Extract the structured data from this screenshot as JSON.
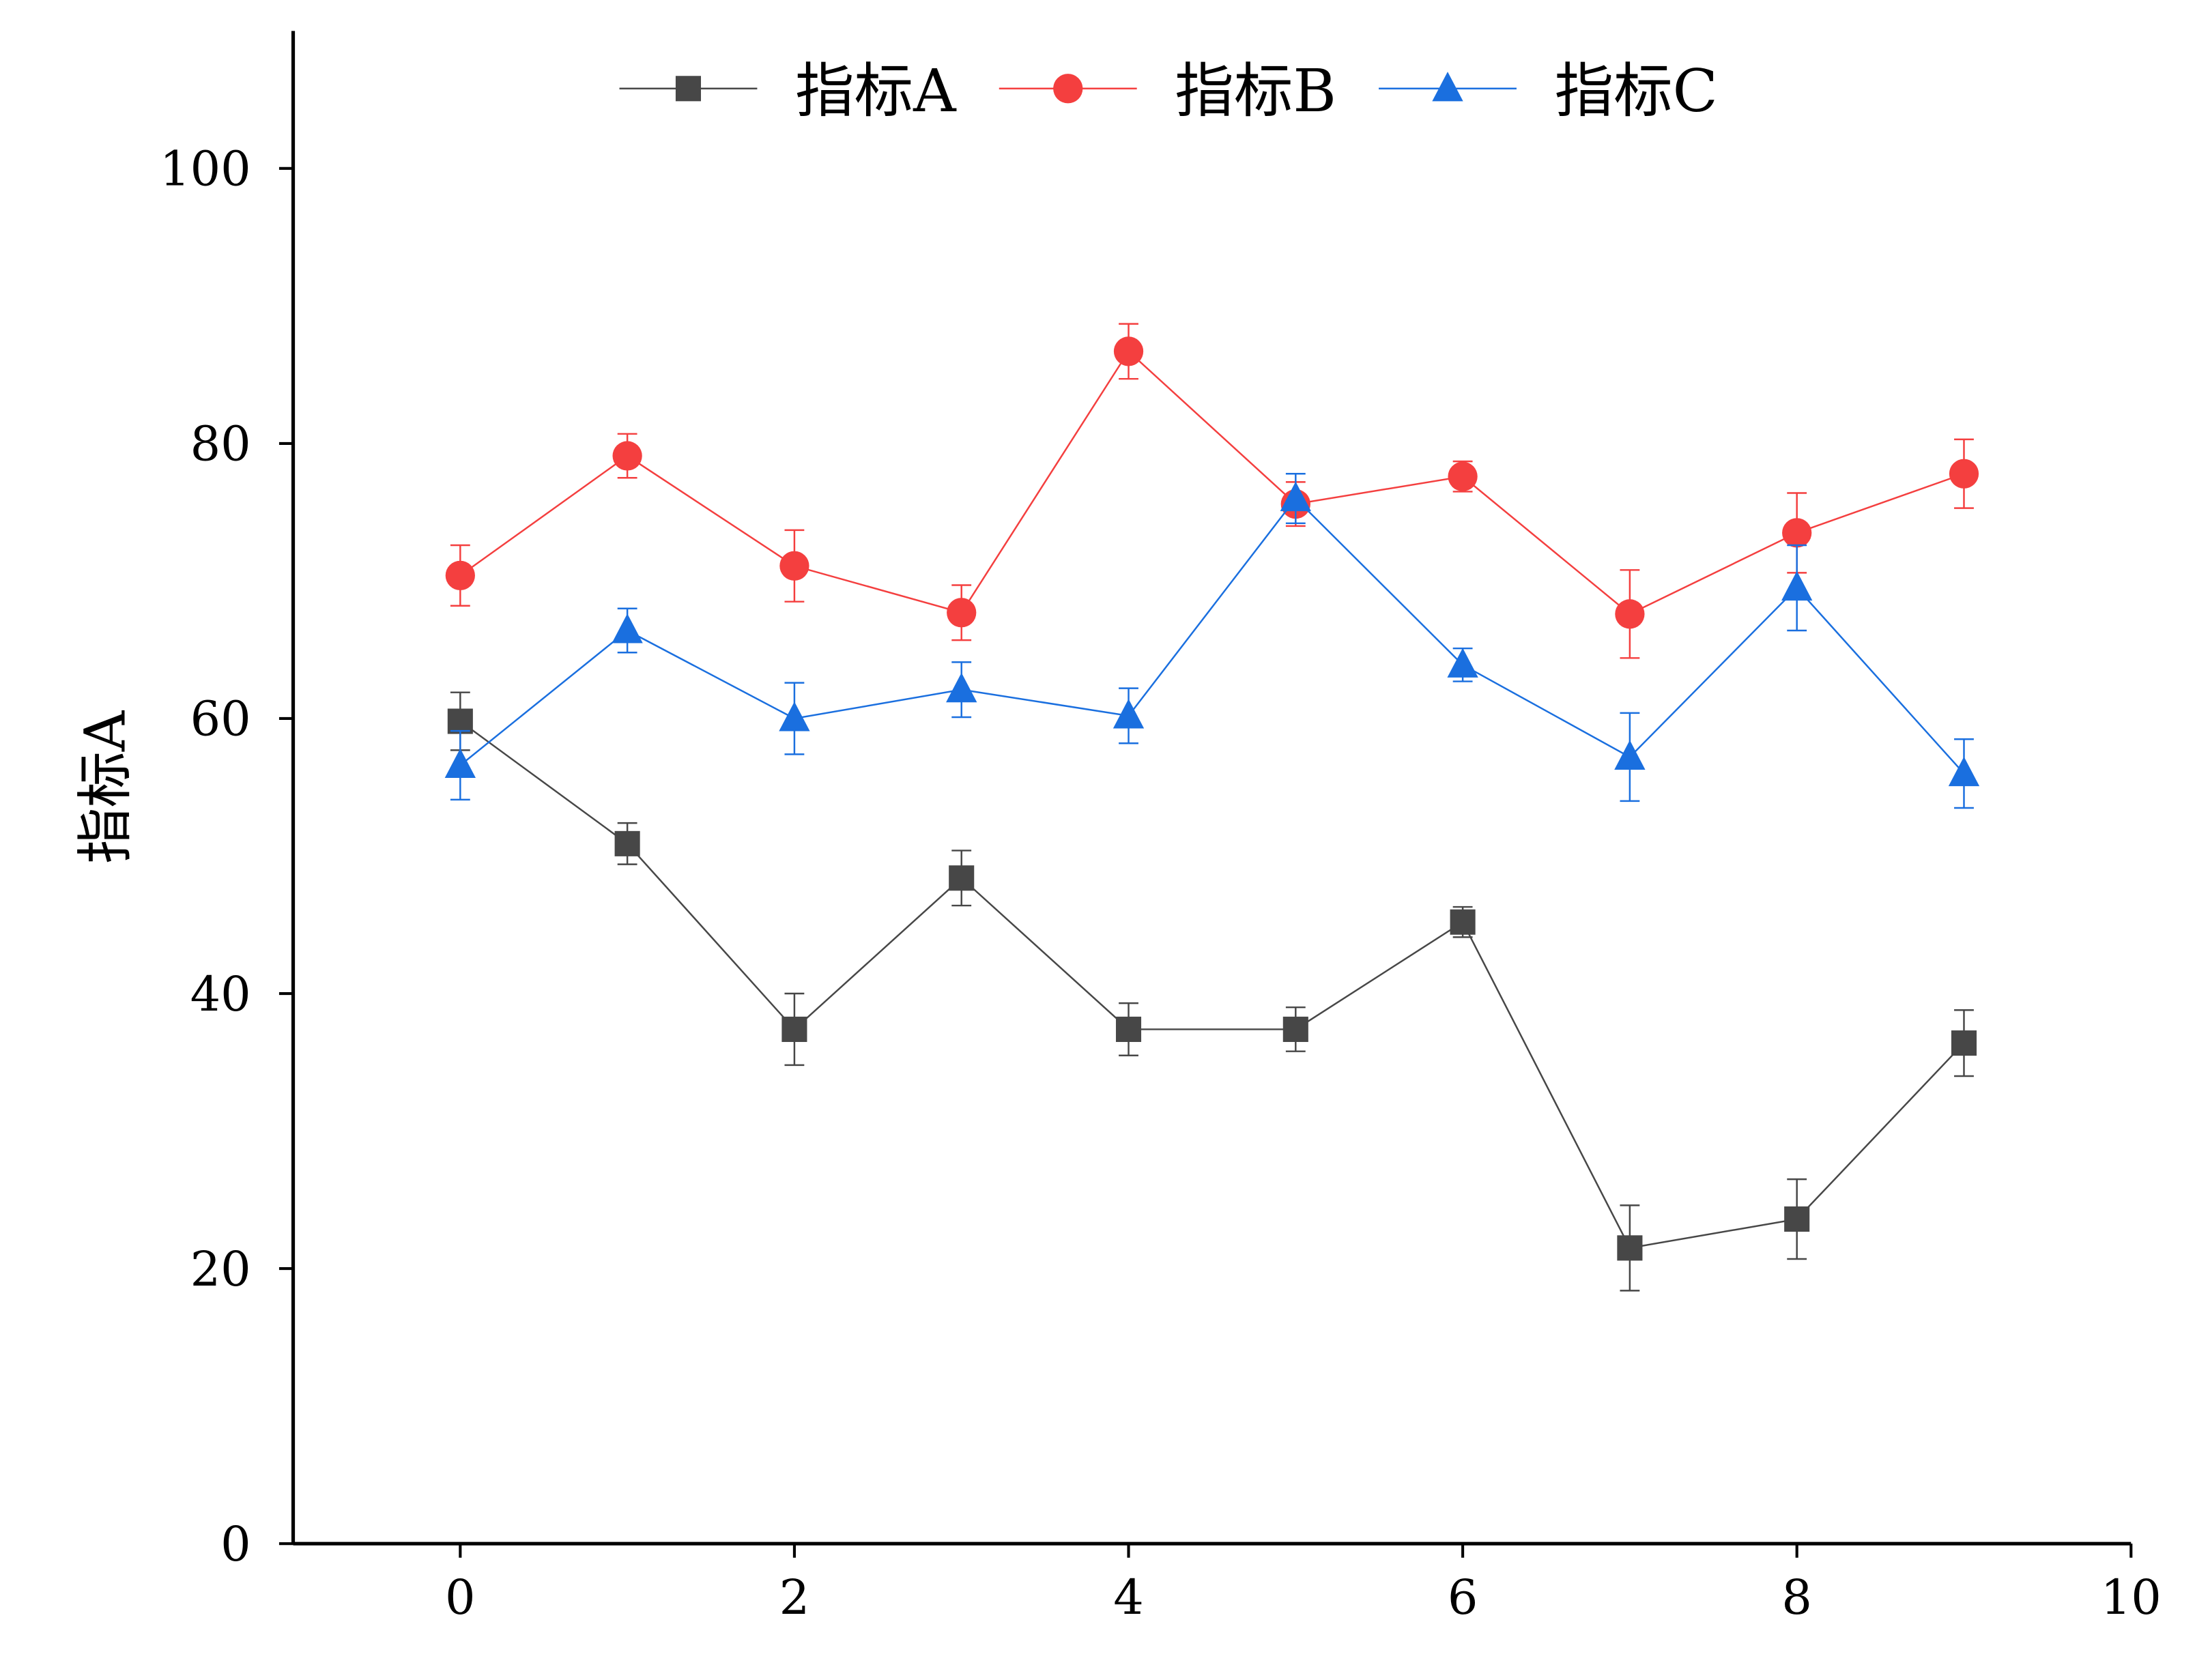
{
  "chart_data": {
    "type": "line",
    "title": "",
    "xlabel": "",
    "ylabel": "指标A",
    "xlim": [
      -1,
      10
    ],
    "ylim": [
      0,
      110
    ],
    "xticks": [
      0,
      2,
      4,
      6,
      8,
      10
    ],
    "yticks": [
      0,
      20,
      40,
      60,
      80,
      100
    ],
    "grid": false,
    "legend_position": "top-center",
    "x": [
      0,
      1,
      2,
      3,
      4,
      5,
      6,
      7,
      8,
      9
    ],
    "series": [
      {
        "name": "指标A",
        "color": "#474747",
        "marker": "square",
        "values": [
          59.8,
          50.9,
          37.4,
          48.4,
          37.4,
          37.4,
          45.2,
          21.5,
          23.6,
          36.4
        ],
        "errors": [
          2.1,
          1.5,
          2.6,
          2.0,
          1.9,
          1.6,
          1.1,
          3.1,
          2.9,
          2.4
        ]
      },
      {
        "name": "指标B",
        "color": "#f43f3f",
        "marker": "circle",
        "values": [
          70.4,
          79.1,
          71.1,
          67.7,
          86.7,
          75.6,
          77.6,
          67.6,
          73.5,
          77.8
        ],
        "errors": [
          2.2,
          1.6,
          2.6,
          2.0,
          2.0,
          1.6,
          1.1,
          3.2,
          2.9,
          2.5
        ]
      },
      {
        "name": "指标C",
        "color": "#1a6fdf",
        "marker": "triangle",
        "values": [
          56.6,
          66.4,
          60.0,
          62.1,
          60.2,
          76.0,
          63.9,
          57.2,
          69.5,
          56.0
        ],
        "errors": [
          2.5,
          1.6,
          2.6,
          2.0,
          2.0,
          1.8,
          1.2,
          3.2,
          3.1,
          2.5
        ]
      }
    ]
  }
}
